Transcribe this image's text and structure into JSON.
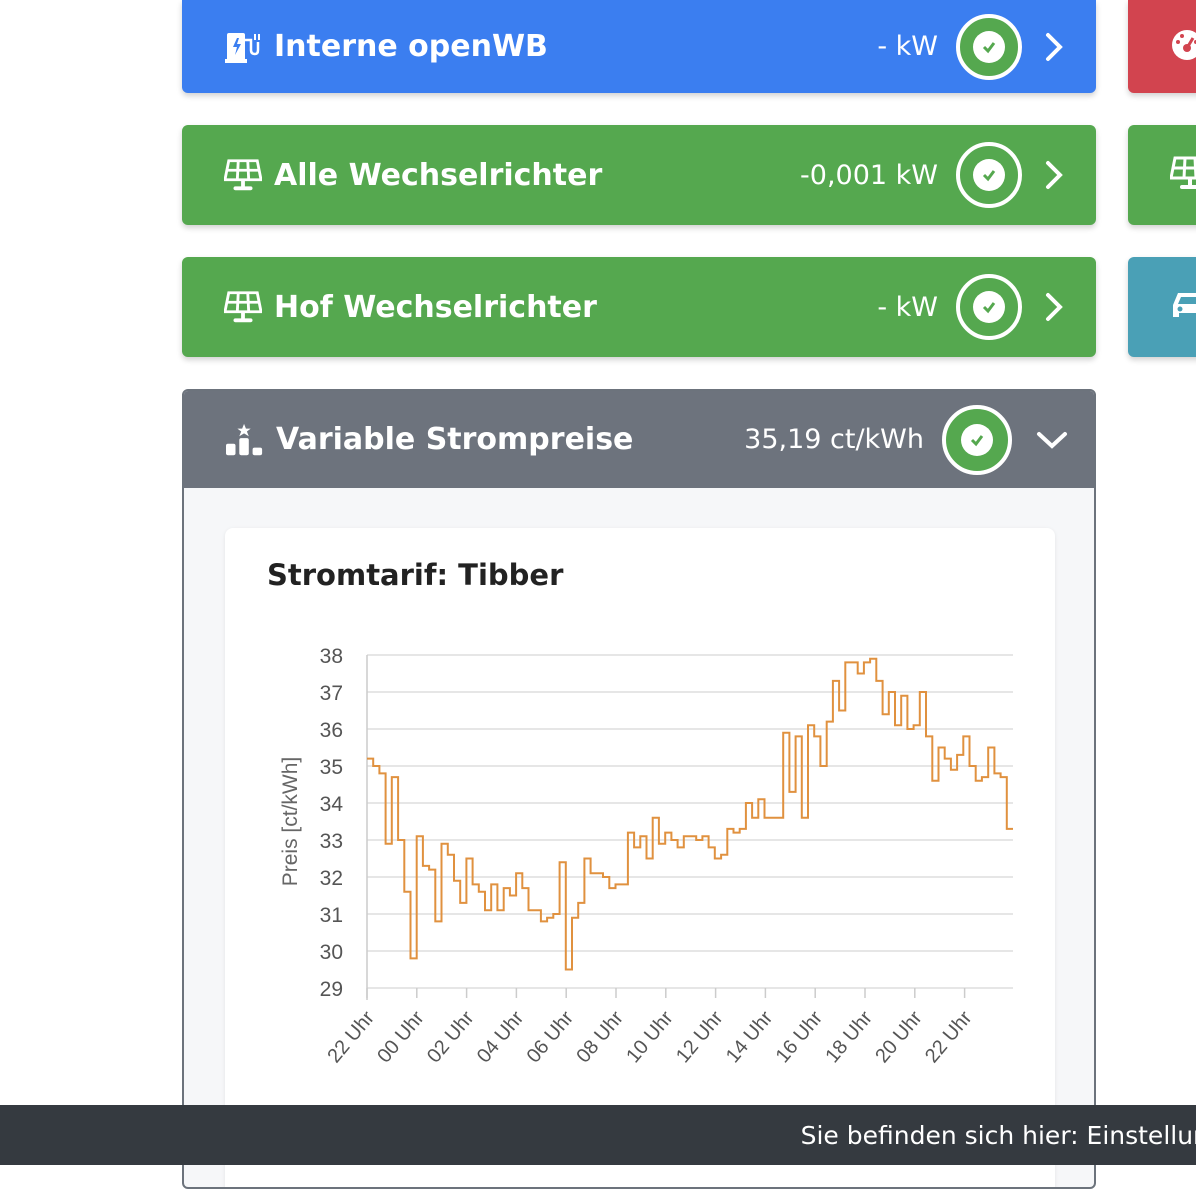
{
  "colors": {
    "blue": "#3b7ef0",
    "green": "#55a84f",
    "red": "#d2444f",
    "teal": "#4aa0b6",
    "gray": "#6d737d",
    "line": "#e0913f"
  },
  "cards": [
    {
      "title": "Interne openWB",
      "value": "- kW",
      "icon": "ev-charger-icon"
    },
    {
      "title": "Alle Wechselrichter",
      "value": "-0,001 kW",
      "icon": "solar-panel-icon"
    },
    {
      "title": "Hof Wechselrichter",
      "value": "- kW",
      "icon": "solar-panel-icon"
    }
  ],
  "side_cards": [
    {
      "icon": "gauge-icon"
    },
    {
      "icon": "solar-panel-icon"
    },
    {
      "icon": "car-icon"
    }
  ],
  "prices": {
    "title": "Variable Strompreise",
    "value": "35,19 ct/kWh",
    "icon": "price-ranking-icon"
  },
  "chart_data": {
    "type": "line",
    "step": true,
    "title": "Stromtarif: Tibber",
    "ylabel": "Preis [ct/kWh]",
    "xlabel": "",
    "ylim": [
      29,
      38
    ],
    "yticks": [
      "38",
      "37",
      "36",
      "35",
      "34",
      "33",
      "32",
      "31",
      "30",
      "29"
    ],
    "xticks": [
      "22 Uhr",
      "00 Uhr",
      "02 Uhr",
      "04 Uhr",
      "06 Uhr",
      "08 Uhr",
      "10 Uhr",
      "12 Uhr",
      "14 Uhr",
      "16 Uhr",
      "18 Uhr",
      "20 Uhr",
      "22 Uhr"
    ],
    "grid": true,
    "series": [
      {
        "values": [
          35.2,
          35.0,
          34.8,
          32.9,
          34.7,
          33.0,
          31.6,
          29.8,
          33.1,
          32.3,
          32.2,
          30.8,
          32.9,
          32.6,
          31.9,
          31.3,
          32.5,
          31.8,
          31.6,
          31.1,
          31.8,
          31.1,
          31.7,
          31.5,
          32.1,
          31.7,
          31.1,
          31.1,
          30.8,
          30.9,
          31.0,
          32.4,
          29.5,
          30.9,
          31.3,
          32.5,
          32.1,
          32.1,
          32.0,
          31.7,
          31.8,
          31.8,
          33.2,
          32.8,
          33.1,
          32.5,
          33.6,
          32.9,
          33.2,
          33.0,
          32.8,
          33.1,
          33.1,
          33.0,
          33.1,
          32.8,
          32.5,
          32.6,
          33.3,
          33.2,
          33.3,
          34.0,
          33.6,
          34.1,
          33.6,
          33.6,
          33.6,
          35.9,
          34.3,
          35.8,
          33.6,
          36.1,
          35.8,
          35.0,
          36.2,
          37.3,
          36.5,
          37.8,
          37.8,
          37.5,
          37.8,
          37.9,
          37.3,
          36.4,
          37.0,
          36.1,
          36.9,
          36.0,
          36.1,
          37.0,
          35.8,
          34.6,
          35.5,
          35.2,
          34.9,
          35.3,
          35.8,
          35.0,
          34.6,
          34.7,
          35.5,
          34.8,
          34.7,
          33.3
        ]
      }
    ]
  },
  "footer": {
    "text": "Sie befinden sich hier: Einstellungen"
  }
}
